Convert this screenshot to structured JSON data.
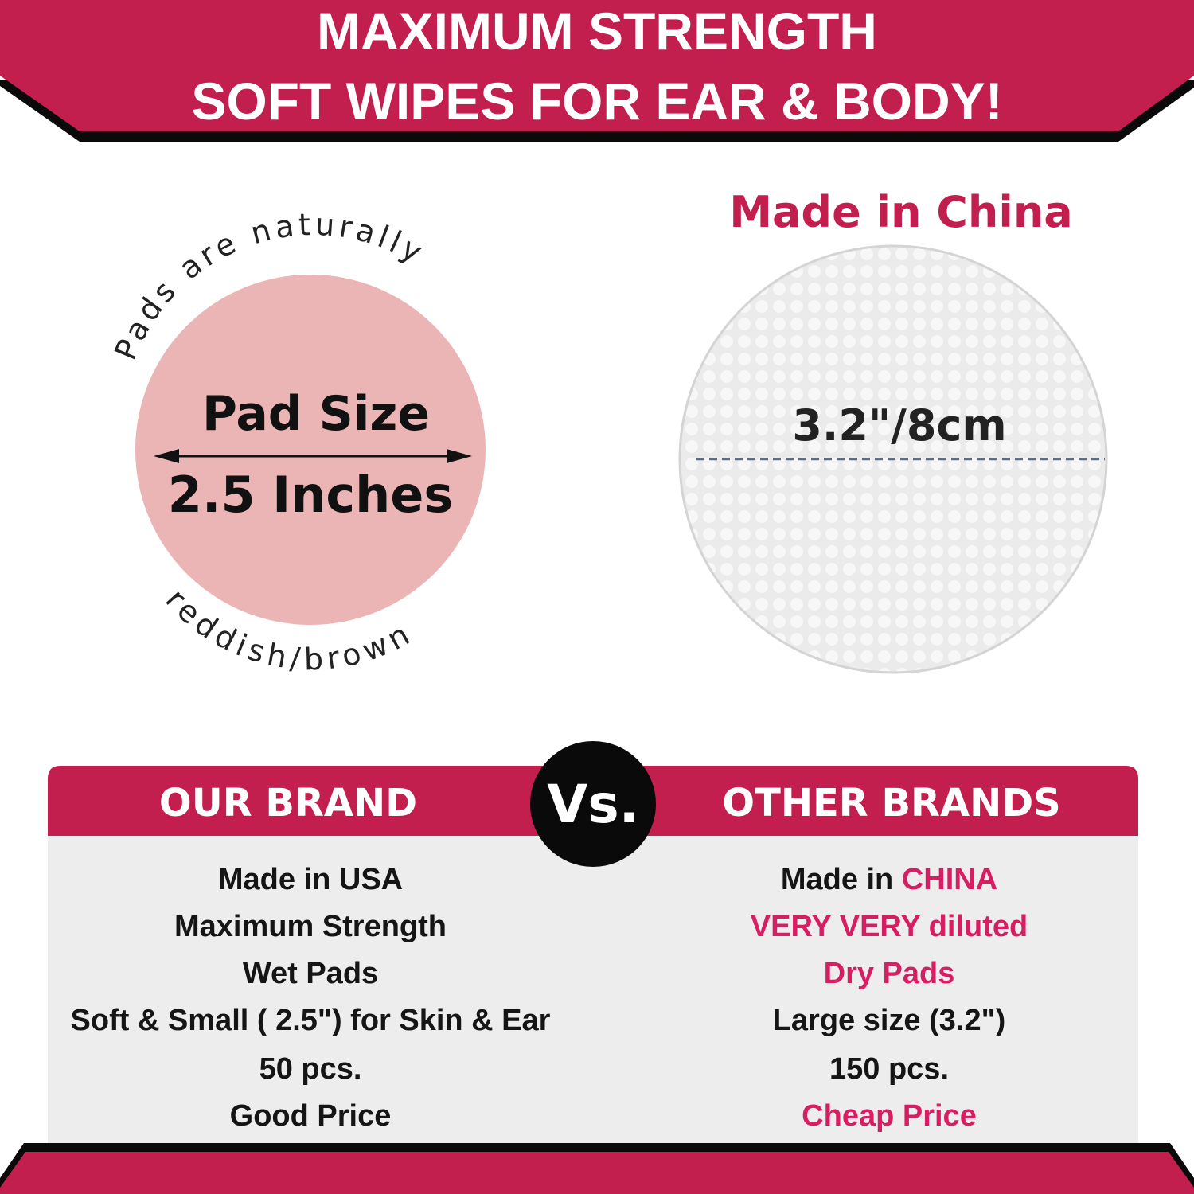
{
  "banner": {
    "line1": "MAXIMUM STRENGTH",
    "line2": "SOFT WIPES FOR EAR & BODY!"
  },
  "our_pad": {
    "curved_top": "Pads are naturally",
    "curved_bottom": "reddish/brown",
    "label": "Pad Size",
    "size": "2.5 Inches"
  },
  "other_pad": {
    "title": "Made in China",
    "size": "3.2\"/8cm"
  },
  "comparison": {
    "vs": "Vs.",
    "our_header": "OUR BRAND",
    "other_header": "OTHER BRANDS",
    "our_rows": [
      "Made in USA",
      "Maximum Strength",
      "Wet Pads",
      "Soft & Small ( 2.5\") for Skin & Ear",
      "50 pcs.",
      "Good Price"
    ],
    "other_rows": [
      {
        "prefix": "Made in ",
        "highlight": "CHINA"
      },
      {
        "prefix": "",
        "highlight": "VERY VERY diluted"
      },
      {
        "prefix": "",
        "highlight": "Dry Pads"
      },
      {
        "prefix": "Large size (3.2\")",
        "highlight": ""
      },
      {
        "prefix": "150 pcs.",
        "highlight": ""
      },
      {
        "prefix": "",
        "highlight": "Cheap Price"
      }
    ]
  },
  "colors": {
    "brand_red": "#c21f4f",
    "highlight_pink": "#d81e63",
    "pad_pink": "#ebb5b5",
    "table_bg": "#ededed"
  }
}
